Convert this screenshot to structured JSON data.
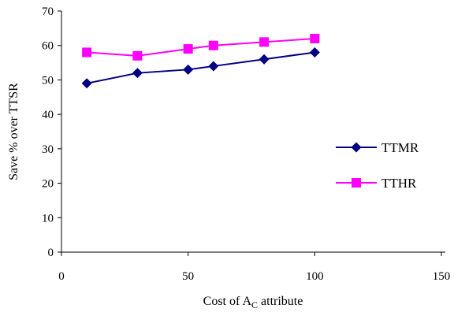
{
  "chart_data": {
    "type": "line",
    "title": "",
    "xlabel": {
      "main": "Cost of A",
      "subscript": "C",
      "suffix": " attribute"
    },
    "ylabel": "Save % over TTSR",
    "xlim": [
      0,
      150
    ],
    "ylim": [
      0,
      70
    ],
    "xticks": [
      "0",
      "50",
      "100",
      "150"
    ],
    "yticks": [
      "0",
      "10",
      "20",
      "30",
      "40",
      "50",
      "60",
      "70"
    ],
    "grid": false,
    "legend_position": "right",
    "series": [
      {
        "name": "TTMR",
        "color": "#000080",
        "marker": "diamond",
        "x": [
          10,
          30,
          50,
          60,
          80,
          100
        ],
        "y": [
          49,
          52,
          53,
          54,
          56,
          58
        ]
      },
      {
        "name": "TTHR",
        "color": "#FF00FF",
        "marker": "square",
        "x": [
          10,
          30,
          50,
          60,
          80,
          100
        ],
        "y": [
          58,
          57,
          59,
          60,
          61,
          62
        ]
      }
    ]
  }
}
